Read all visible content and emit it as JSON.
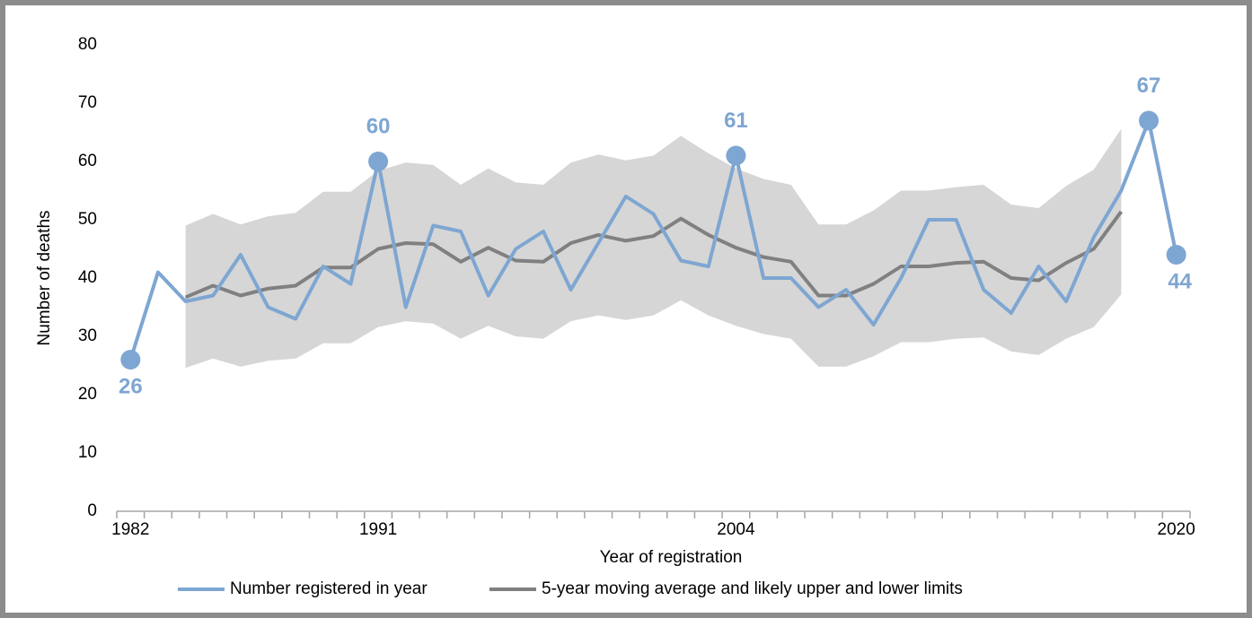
{
  "chart_data": {
    "type": "line",
    "y_label": "Number of deaths",
    "x_label": "Year of registration",
    "categories": [
      "1982",
      null,
      null,
      null,
      null,
      null,
      null,
      null,
      null,
      "1991",
      null,
      null,
      null,
      null,
      null,
      null,
      null,
      null,
      null,
      null,
      null,
      null,
      "2004",
      null,
      null,
      null,
      null,
      null,
      null,
      null,
      null,
      null,
      null,
      null,
      null,
      null,
      null,
      null,
      "2020"
    ],
    "series": [
      {
        "name": "Number registered in year",
        "color": "#7ea6d2",
        "values": [
          26,
          41,
          36,
          37,
          44,
          35,
          33,
          42,
          39,
          60,
          35,
          49,
          48,
          37,
          45,
          48,
          38,
          46,
          54,
          51,
          43,
          42,
          61,
          40,
          40,
          35,
          38,
          32,
          40,
          50,
          50,
          38,
          34,
          42,
          36,
          47,
          55,
          67,
          44
        ],
        "value_labels": [
          "26",
          null,
          null,
          null,
          null,
          null,
          null,
          null,
          null,
          "60",
          null,
          null,
          null,
          null,
          null,
          null,
          null,
          null,
          null,
          null,
          null,
          null,
          "61",
          null,
          null,
          null,
          null,
          null,
          null,
          null,
          null,
          null,
          null,
          null,
          null,
          null,
          null,
          "67",
          "44"
        ]
      },
      {
        "name": "5-year moving average and likely upper and lower limits",
        "color": "#808080",
        "values": [
          null,
          null,
          36.7,
          38.7,
          37.0,
          38.2,
          38.7,
          41.8,
          41.8,
          45.0,
          46.0,
          45.8,
          42.8,
          45.2,
          43.0,
          42.8,
          46.0,
          47.4,
          46.4,
          47.2,
          50.2,
          47.4,
          45.2,
          43.6,
          42.8,
          37.0,
          37.0,
          39.0,
          42.0,
          42.0,
          42.6,
          42.8,
          40.0,
          39.6,
          42.6,
          45.0,
          51.4,
          null,
          null
        ]
      }
    ],
    "band": {
      "color": "#d6d6d6",
      "upper": [
        null,
        null,
        49,
        51,
        49.2,
        50.6,
        51.2,
        54.8,
        54.8,
        58.4,
        59.8,
        59.4,
        56,
        58.8,
        56.4,
        56,
        59.8,
        61.2,
        60.2,
        61,
        64.4,
        61.4,
        58.8,
        57,
        56,
        49.2,
        49.2,
        51.6,
        55,
        55,
        55.6,
        56,
        52.6,
        52,
        55.8,
        58.6,
        65.6,
        null,
        null
      ],
      "lower": [
        null,
        null,
        24.6,
        26.2,
        24.8,
        25.8,
        26.2,
        28.8,
        28.8,
        31.6,
        32.6,
        32.2,
        29.6,
        31.8,
        30,
        29.6,
        32.6,
        33.6,
        32.8,
        33.6,
        36.2,
        33.6,
        31.8,
        30.4,
        29.6,
        24.8,
        24.8,
        26.6,
        29,
        29,
        29.6,
        29.8,
        27.4,
        26.8,
        29.6,
        31.6,
        37.2,
        null,
        null
      ]
    },
    "ylim": [
      0,
      80
    ],
    "yticks": [
      0,
      10,
      20,
      30,
      40,
      50,
      60,
      70,
      80
    ],
    "grid": false
  }
}
